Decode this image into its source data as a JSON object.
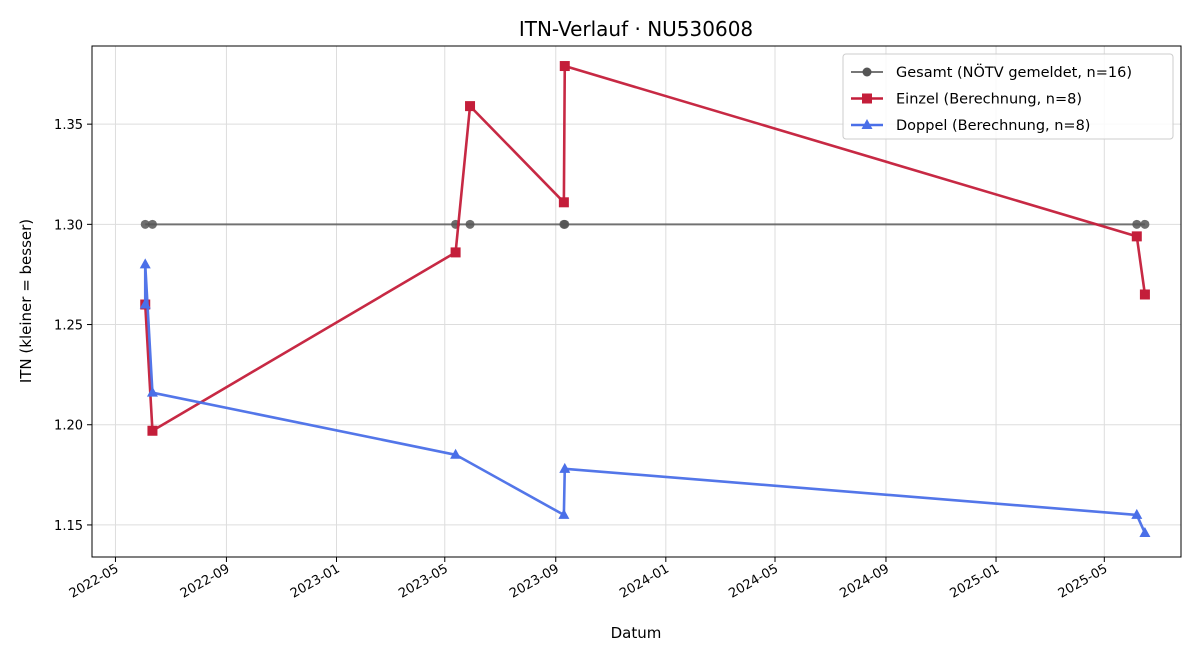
{
  "chart_data": {
    "type": "line",
    "title": "ITN-Verlauf · NU530608",
    "xlabel": "Datum",
    "ylabel": "ITN  (kleiner = besser)",
    "x_ticks": [
      "2022-05",
      "2022-09",
      "2023-01",
      "2023-05",
      "2023-09",
      "2024-01",
      "2024-05",
      "2024-09",
      "2025-01",
      "2025-05"
    ],
    "x_range": [
      "2022-04-05",
      "2025-07-25"
    ],
    "y_ticks": [
      "1.15",
      "1.20",
      "1.25",
      "1.30",
      "1.35"
    ],
    "ylim": [
      1.134,
      1.389
    ],
    "grid": true,
    "legend_position": "top-right",
    "series": [
      {
        "name": "Gesamt (NÖTV gemeldet, n=16)",
        "color": "#555555",
        "marker": "circle",
        "x": [
          "2022-06-03",
          "2022-06-11",
          "2023-05-13",
          "2023-05-29",
          "2023-09-10",
          "2023-09-11",
          "2025-06-06",
          "2025-06-15"
        ],
        "y": [
          1.3,
          1.3,
          1.3,
          1.3,
          1.3,
          1.3,
          1.3,
          1.3
        ]
      },
      {
        "name": "Einzel (Berechnung, n=8)",
        "color": "#c41e3a",
        "marker": "square",
        "x": [
          "2022-06-03",
          "2022-06-11",
          "2023-05-13",
          "2023-05-29",
          "2023-09-10",
          "2023-09-11",
          "2025-06-06",
          "2025-06-15"
        ],
        "y": [
          1.26,
          1.197,
          1.286,
          1.359,
          1.311,
          1.379,
          1.294,
          1.265
        ]
      },
      {
        "name": "Doppel (Berechnung, n=8)",
        "color": "#4a6fe8",
        "marker": "triangle",
        "x": [
          "2022-06-03",
          "2022-06-03",
          "2022-06-11",
          "2023-05-13",
          "2023-09-10",
          "2023-09-11",
          "2025-06-06",
          "2025-06-15"
        ],
        "y": [
          1.26,
          1.28,
          1.216,
          1.185,
          1.155,
          1.178,
          1.155,
          1.146
        ]
      }
    ]
  }
}
